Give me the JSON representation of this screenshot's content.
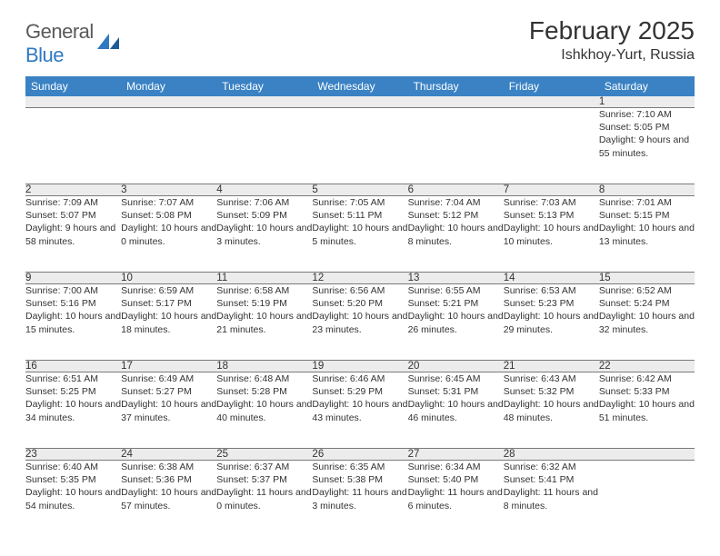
{
  "brand": {
    "part1": "General",
    "part2": "Blue"
  },
  "title": "February 2025",
  "location": "Ishkhoy-Yurt, Russia",
  "colors": {
    "header_bg": "#3a82c4",
    "stripe_bg": "#ececec",
    "rule": "#7a7a7a",
    "brand_blue": "#2f78c2"
  },
  "day_headers": [
    "Sunday",
    "Monday",
    "Tuesday",
    "Wednesday",
    "Thursday",
    "Friday",
    "Saturday"
  ],
  "weeks": [
    {
      "nums": [
        "",
        "",
        "",
        "",
        "",
        "",
        "1"
      ],
      "cells": [
        "",
        "",
        "",
        "",
        "",
        "",
        "Sunrise: 7:10 AM\nSunset: 5:05 PM\nDaylight: 9 hours and 55 minutes."
      ]
    },
    {
      "nums": [
        "2",
        "3",
        "4",
        "5",
        "6",
        "7",
        "8"
      ],
      "cells": [
        "Sunrise: 7:09 AM\nSunset: 5:07 PM\nDaylight: 9 hours and 58 minutes.",
        "Sunrise: 7:07 AM\nSunset: 5:08 PM\nDaylight: 10 hours and 0 minutes.",
        "Sunrise: 7:06 AM\nSunset: 5:09 PM\nDaylight: 10 hours and 3 minutes.",
        "Sunrise: 7:05 AM\nSunset: 5:11 PM\nDaylight: 10 hours and 5 minutes.",
        "Sunrise: 7:04 AM\nSunset: 5:12 PM\nDaylight: 10 hours and 8 minutes.",
        "Sunrise: 7:03 AM\nSunset: 5:13 PM\nDaylight: 10 hours and 10 minutes.",
        "Sunrise: 7:01 AM\nSunset: 5:15 PM\nDaylight: 10 hours and 13 minutes."
      ]
    },
    {
      "nums": [
        "9",
        "10",
        "11",
        "12",
        "13",
        "14",
        "15"
      ],
      "cells": [
        "Sunrise: 7:00 AM\nSunset: 5:16 PM\nDaylight: 10 hours and 15 minutes.",
        "Sunrise: 6:59 AM\nSunset: 5:17 PM\nDaylight: 10 hours and 18 minutes.",
        "Sunrise: 6:58 AM\nSunset: 5:19 PM\nDaylight: 10 hours and 21 minutes.",
        "Sunrise: 6:56 AM\nSunset: 5:20 PM\nDaylight: 10 hours and 23 minutes.",
        "Sunrise: 6:55 AM\nSunset: 5:21 PM\nDaylight: 10 hours and 26 minutes.",
        "Sunrise: 6:53 AM\nSunset: 5:23 PM\nDaylight: 10 hours and 29 minutes.",
        "Sunrise: 6:52 AM\nSunset: 5:24 PM\nDaylight: 10 hours and 32 minutes."
      ]
    },
    {
      "nums": [
        "16",
        "17",
        "18",
        "19",
        "20",
        "21",
        "22"
      ],
      "cells": [
        "Sunrise: 6:51 AM\nSunset: 5:25 PM\nDaylight: 10 hours and 34 minutes.",
        "Sunrise: 6:49 AM\nSunset: 5:27 PM\nDaylight: 10 hours and 37 minutes.",
        "Sunrise: 6:48 AM\nSunset: 5:28 PM\nDaylight: 10 hours and 40 minutes.",
        "Sunrise: 6:46 AM\nSunset: 5:29 PM\nDaylight: 10 hours and 43 minutes.",
        "Sunrise: 6:45 AM\nSunset: 5:31 PM\nDaylight: 10 hours and 46 minutes.",
        "Sunrise: 6:43 AM\nSunset: 5:32 PM\nDaylight: 10 hours and 48 minutes.",
        "Sunrise: 6:42 AM\nSunset: 5:33 PM\nDaylight: 10 hours and 51 minutes."
      ]
    },
    {
      "nums": [
        "23",
        "24",
        "25",
        "26",
        "27",
        "28",
        ""
      ],
      "cells": [
        "Sunrise: 6:40 AM\nSunset: 5:35 PM\nDaylight: 10 hours and 54 minutes.",
        "Sunrise: 6:38 AM\nSunset: 5:36 PM\nDaylight: 10 hours and 57 minutes.",
        "Sunrise: 6:37 AM\nSunset: 5:37 PM\nDaylight: 11 hours and 0 minutes.",
        "Sunrise: 6:35 AM\nSunset: 5:38 PM\nDaylight: 11 hours and 3 minutes.",
        "Sunrise: 6:34 AM\nSunset: 5:40 PM\nDaylight: 11 hours and 6 minutes.",
        "Sunrise: 6:32 AM\nSunset: 5:41 PM\nDaylight: 11 hours and 8 minutes.",
        ""
      ]
    }
  ]
}
